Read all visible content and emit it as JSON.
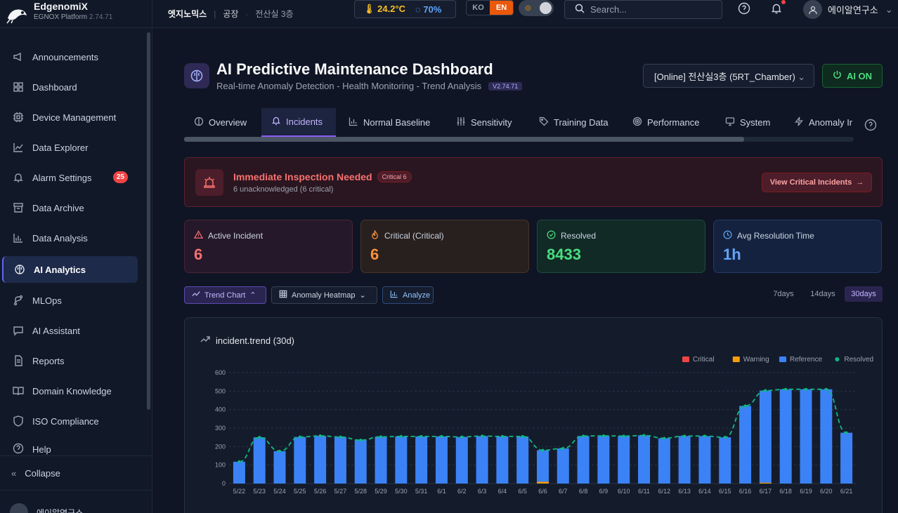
{
  "brand": {
    "name": "EdgenomiX",
    "sub": "EGNOX Platform",
    "version": "2.74.71"
  },
  "sidebar": {
    "items": [
      {
        "label": "Announcements",
        "icon": "megaphone-icon"
      },
      {
        "label": "Dashboard",
        "icon": "grid-icon"
      },
      {
        "label": "Device Management",
        "icon": "chip-icon"
      },
      {
        "label": "Data Explorer",
        "icon": "line-chart-icon"
      },
      {
        "label": "Alarm Settings",
        "icon": "bell-icon",
        "badge": "25"
      },
      {
        "label": "Data Archive",
        "icon": "archive-icon"
      },
      {
        "label": "Data Analysis",
        "icon": "bar-chart-icon"
      },
      {
        "label": "AI Analytics",
        "icon": "brain-icon",
        "active": true
      },
      {
        "label": "MLOps",
        "icon": "git-branch-icon"
      },
      {
        "label": "AI Assistant",
        "icon": "chat-icon"
      },
      {
        "label": "Reports",
        "icon": "document-icon"
      },
      {
        "label": "Domain Knowledge",
        "icon": "book-icon"
      },
      {
        "label": "ISO Compliance",
        "icon": "shield-icon"
      },
      {
        "label": "Help",
        "icon": "help-icon"
      }
    ],
    "collapse_label": "Collapse",
    "user_name": "에이알연구소"
  },
  "topbar": {
    "breadcrumb": [
      "엣지노믹스",
      "공장",
      "전산실 3층"
    ],
    "temperature": "24.2°C",
    "humidity": "70%",
    "lang_ko": "KO",
    "lang_en": "EN",
    "search_placeholder": "Search...",
    "user_name": "에이알연구소"
  },
  "header": {
    "title": "AI Predictive Maintenance Dashboard",
    "subtitle": "Real-time Anomaly Detection - Health Monitoring - Trend Analysis",
    "version_tag": "V2.74.71",
    "device_select": "[Online] 전산실3층 (5RT_Chamber)",
    "ai_button": "AI ON"
  },
  "tabs": [
    {
      "label": "Overview",
      "icon": "brain-icon"
    },
    {
      "label": "Incidents",
      "icon": "bell-icon",
      "active": true
    },
    {
      "label": "Normal Baseline",
      "icon": "bar-chart-icon"
    },
    {
      "label": "Sensitivity",
      "icon": "sliders-icon"
    },
    {
      "label": "Training Data",
      "icon": "tag-icon"
    },
    {
      "label": "Performance",
      "icon": "target-icon"
    },
    {
      "label": "System",
      "icon": "monitor-icon"
    },
    {
      "label": "Anomaly Ir",
      "icon": "zap-icon"
    }
  ],
  "alert": {
    "title": "Immediate Inspection Needed",
    "badge": "Critical 6",
    "subtitle": "6 unacknowledged (6 critical)",
    "button": "View Critical Incidents"
  },
  "kpis": [
    {
      "label": "Active Incident",
      "value": "6",
      "icon": "warning-triangle-icon"
    },
    {
      "label": "Critical (Critical)",
      "value": "6",
      "icon": "flame-icon"
    },
    {
      "label": "Resolved",
      "value": "8433",
      "icon": "check-circle-icon"
    },
    {
      "label": "Avg Resolution Time",
      "value": "1h",
      "icon": "clock-icon"
    }
  ],
  "controls": {
    "trend_chart": "Trend Chart",
    "anomaly_heatmap": "Anomaly Heatmap",
    "analyze": "Analyze",
    "ranges": [
      "7days",
      "14days",
      "30days"
    ],
    "active_range": "30days"
  },
  "colors": {
    "critical": "#ef4444",
    "warning": "#f59e0b",
    "reference": "#3b82f6",
    "resolved": "#10b981",
    "accent": "#8b5cf6"
  },
  "chart_data": {
    "type": "bar",
    "title": "incident.trend (30d)",
    "legend_position": "top-right",
    "ylim": [
      0,
      600
    ],
    "yticks": [
      0,
      100,
      200,
      300,
      400,
      500,
      600
    ],
    "grid": true,
    "categories": [
      "5/22",
      "5/23",
      "5/24",
      "5/25",
      "5/26",
      "5/27",
      "5/28",
      "5/29",
      "5/30",
      "5/31",
      "6/1",
      "6/2",
      "6/3",
      "6/4",
      "6/5",
      "6/6",
      "6/7",
      "6/8",
      "6/9",
      "6/10",
      "6/11",
      "6/12",
      "6/13",
      "6/14",
      "6/15",
      "6/16",
      "6/17",
      "6/18",
      "6/19",
      "6/20",
      "6/21"
    ],
    "series": [
      {
        "name": "Critical",
        "kind": "bar",
        "color": "#ef4444",
        "values": [
          0,
          0,
          0,
          0,
          0,
          0,
          0,
          0,
          0,
          0,
          0,
          0,
          0,
          0,
          0,
          0,
          0,
          0,
          0,
          0,
          0,
          0,
          0,
          0,
          0,
          0,
          0,
          0,
          0,
          0,
          0
        ]
      },
      {
        "name": "Warning",
        "kind": "bar",
        "color": "#f59e0b",
        "values": [
          0,
          0,
          0,
          0,
          0,
          0,
          0,
          0,
          0,
          0,
          0,
          0,
          0,
          0,
          0,
          10,
          0,
          0,
          0,
          0,
          0,
          0,
          0,
          0,
          0,
          0,
          5,
          0,
          0,
          0,
          0
        ]
      },
      {
        "name": "Reference",
        "kind": "bar",
        "color": "#3b82f6",
        "values": [
          118,
          250,
          175,
          252,
          258,
          252,
          235,
          253,
          255,
          255,
          255,
          252,
          257,
          255,
          255,
          170,
          190,
          257,
          258,
          257,
          260,
          245,
          257,
          257,
          250,
          420,
          498,
          510,
          510,
          510,
          275
        ]
      },
      {
        "name": "Resolved",
        "kind": "line",
        "color": "#10b981",
        "values": [
          118,
          250,
          175,
          252,
          258,
          252,
          235,
          253,
          255,
          255,
          255,
          252,
          257,
          255,
          255,
          180,
          190,
          257,
          258,
          257,
          260,
          245,
          257,
          257,
          250,
          420,
          503,
          510,
          510,
          510,
          275
        ]
      }
    ]
  }
}
